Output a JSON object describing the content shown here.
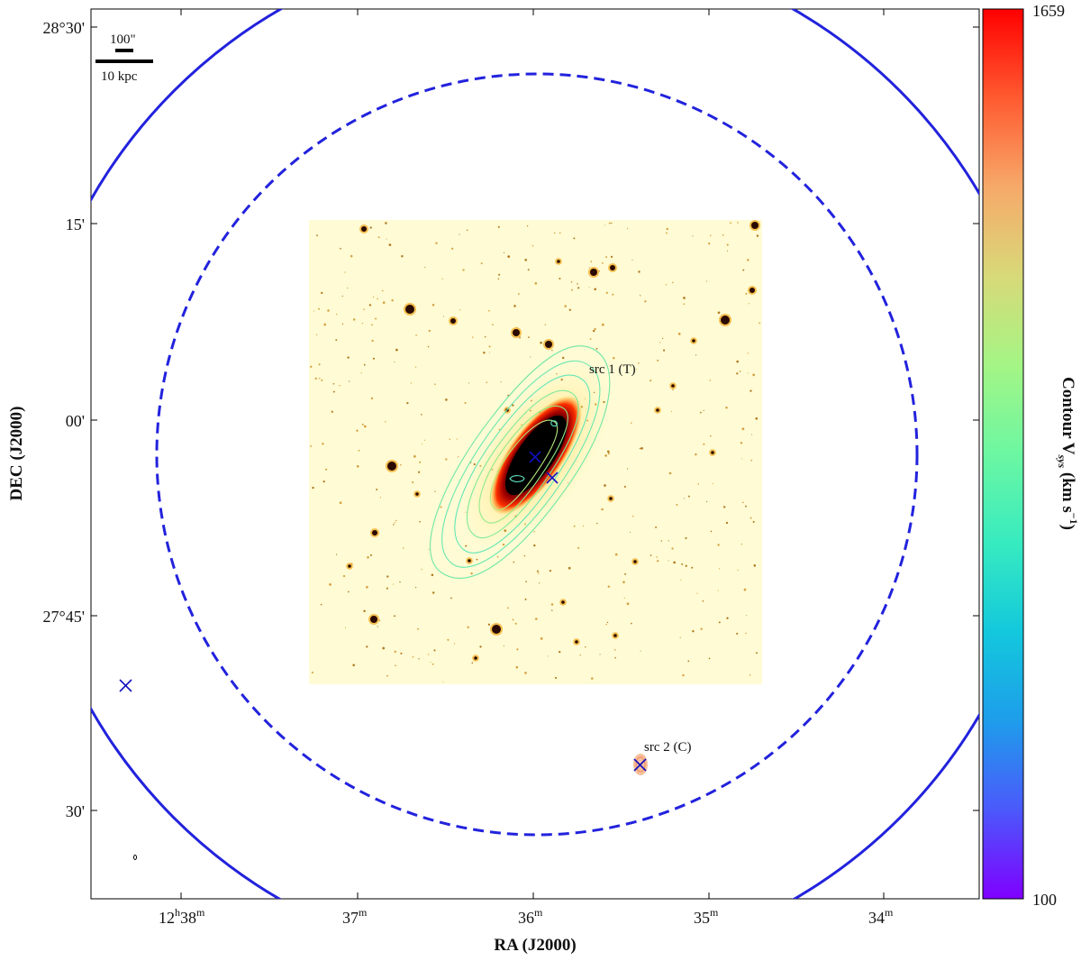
{
  "figure": {
    "x_axis": {
      "title": "RA (J2000)",
      "ticks": [
        {
          "main": "12",
          "sup_h": "h",
          "main2": "38",
          "sup_m": "m"
        },
        {
          "main": "37",
          "sup_m": "m"
        },
        {
          "main": "36",
          "sup_m": "m"
        },
        {
          "main": "35",
          "sup_m": "m"
        },
        {
          "main": "34",
          "sup_m": "m"
        }
      ]
    },
    "y_axis": {
      "title": "DEC (J2000)",
      "ticks": [
        "28°30'",
        "15'",
        "00'",
        "27°45'",
        "30'"
      ]
    },
    "scale_bar": {
      "angular_label": "100\"",
      "physical_label": "10 kpc"
    },
    "annotations": {
      "src1": "src 1 (T)",
      "src2": "src 2 (C)"
    },
    "colorbar": {
      "max_label": "1659",
      "min_label": "100",
      "title_prefix": "Contour V",
      "title_sub": "sys",
      "title_mid": " (km s",
      "title_sup": "−1",
      "title_suffix": ")",
      "colors": [
        "#7f00ff",
        "#4b59fb",
        "#1e9deb",
        "#26d0d4",
        "#58f0b2",
        "#8cfc8e",
        "#c4f070",
        "#f0c570",
        "#ff8c52",
        "#ff4a2a",
        "#ff0000"
      ]
    },
    "markers": {
      "color": "#1010c0",
      "circle_color": "#2020e0"
    }
  }
}
